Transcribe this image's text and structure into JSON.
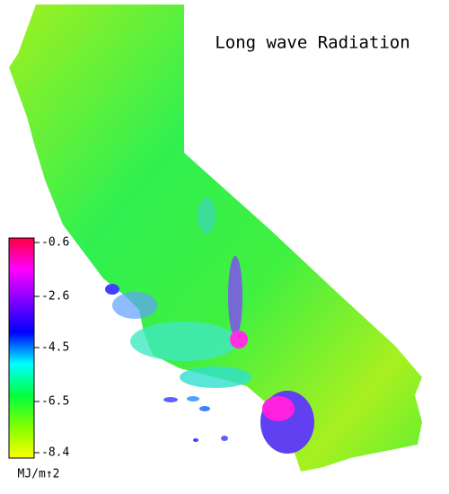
{
  "title": "Long wave Radiation",
  "colorbar": {
    "ticks": [
      -0.6,
      -2.6,
      -4.5,
      -6.5,
      -8.4
    ],
    "colors": [
      "#ff0040",
      "#ff00ff",
      "#8000ff",
      "#0000ff",
      "#00ffff",
      "#00ff40",
      "#80ff00",
      "#ffff00"
    ],
    "unit": "MJ/m↑2"
  }
}
